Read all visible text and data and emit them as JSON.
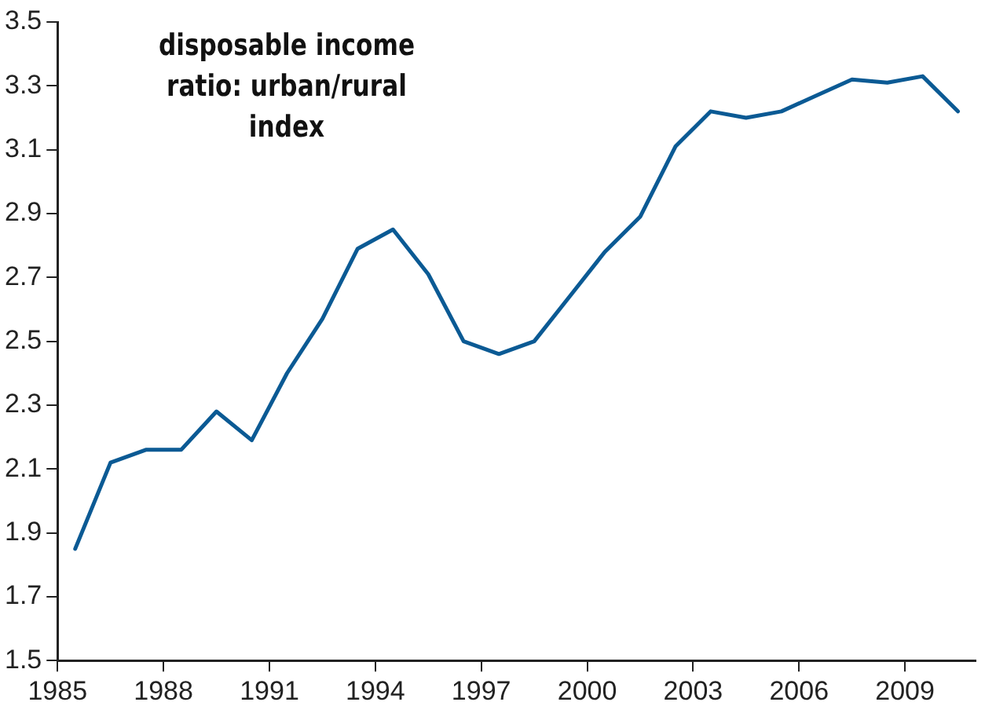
{
  "chart_data": {
    "type": "line",
    "title": "disposable income ratio: urban/rural index",
    "x": [
      1985.5,
      1986.5,
      1987.5,
      1988.5,
      1989.5,
      1990.5,
      1991.5,
      1992.5,
      1993.5,
      1994.5,
      1995.5,
      1996.5,
      1997.5,
      1998.5,
      1999.5,
      2000.5,
      2001.5,
      2002.5,
      2003.5,
      2004.5,
      2005.5,
      2006.5,
      2007.5,
      2008.5,
      2009.5,
      2010.5
    ],
    "series": [
      {
        "color": "#0b5a94",
        "values": [
          1.85,
          2.12,
          2.16,
          2.16,
          2.28,
          2.19,
          2.4,
          2.57,
          2.79,
          2.85,
          2.71,
          2.5,
          2.46,
          2.5,
          2.64,
          2.78,
          2.89,
          3.11,
          3.22,
          3.2,
          3.22,
          3.27,
          3.32,
          3.31,
          3.33,
          3.22
        ]
      }
    ],
    "xlim": [
      1985,
      2011
    ],
    "xticks": [
      1985,
      1988,
      1991,
      1994,
      1997,
      2000,
      2003,
      2006,
      2009
    ],
    "ylim": [
      1.5,
      3.5
    ],
    "yticks": [
      1.5,
      1.7,
      1.9,
      2.1,
      2.3,
      2.5,
      2.7,
      2.9,
      3.1,
      3.3,
      3.5
    ],
    "grid": false,
    "legend": false,
    "marker": "none",
    "line_style": "solid"
  }
}
